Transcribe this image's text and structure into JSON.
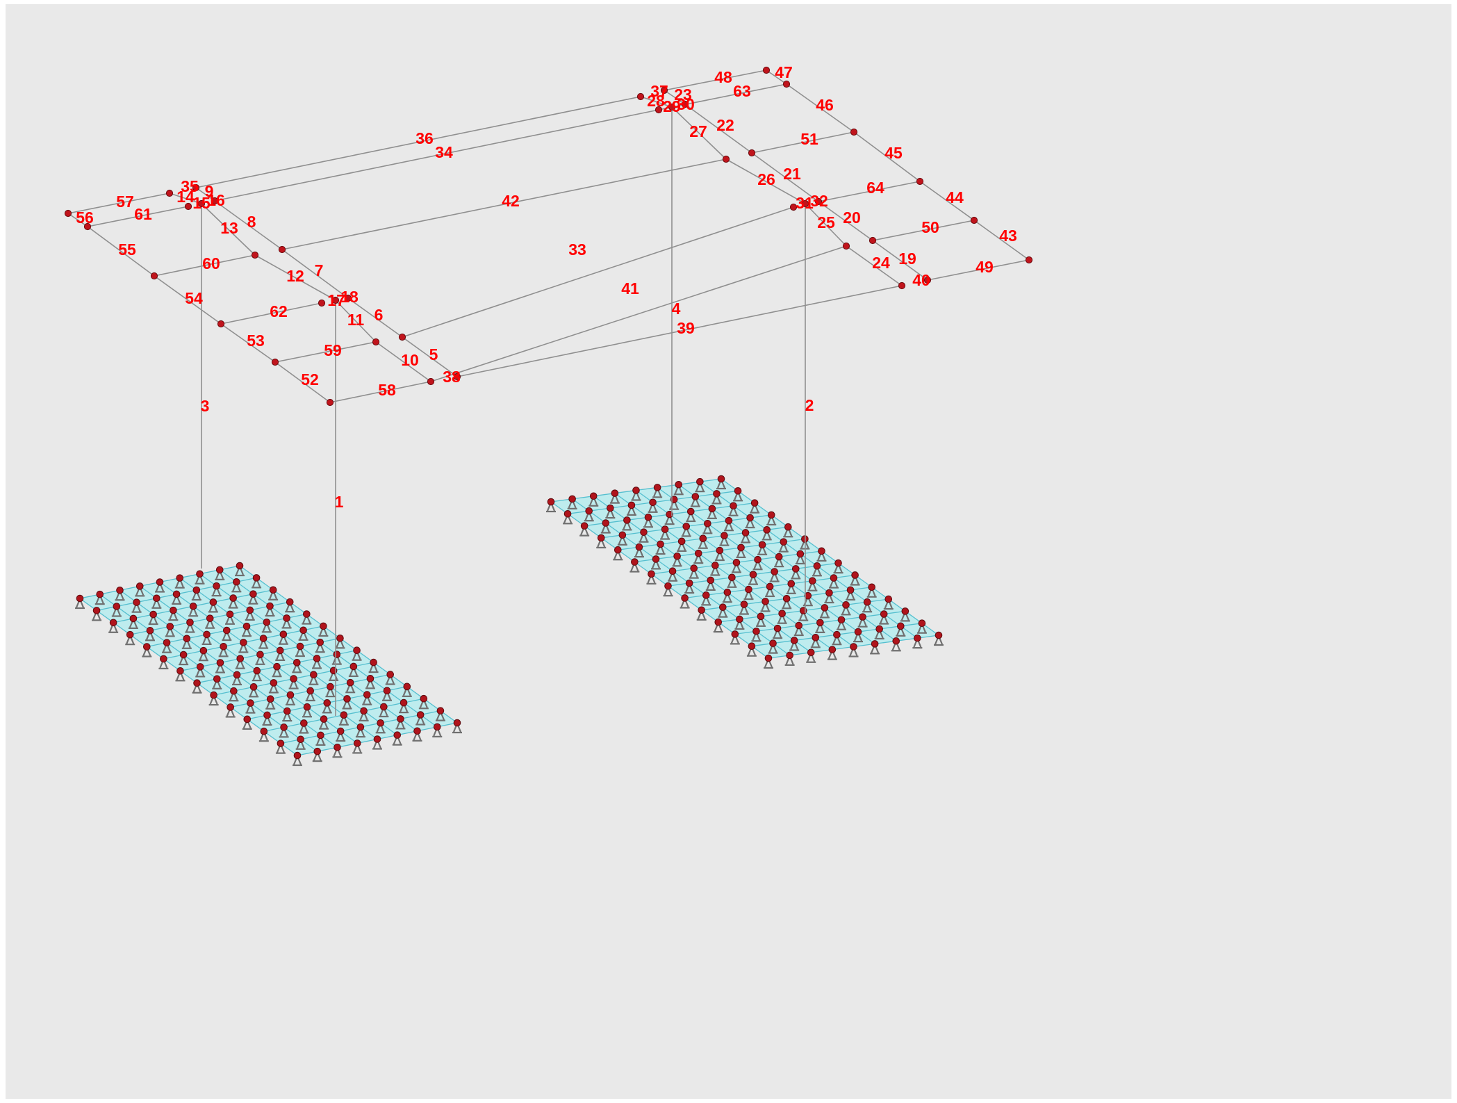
{
  "colors": {
    "background": "#e9e9e9",
    "member_line": "#8f8f8f",
    "node": "#c0141c",
    "label": "#ff0000",
    "mesh_fill": "#b6ecef",
    "mesh_line": "#55bfcf",
    "support": "#6f6f6f"
  },
  "icons": {
    "node": "node-dot-icon",
    "support": "pinned-support-icon"
  },
  "member_labels": {
    "m1": "1",
    "m2": "2",
    "m3": "3",
    "m4": "4",
    "m5": "5",
    "m6": "6",
    "m7": "7",
    "m8": "8",
    "m9": "9",
    "m10": "10",
    "m11": "11",
    "m12": "12",
    "m13": "13",
    "m14": "14",
    "m15": "15",
    "m16": "16",
    "m17": "17",
    "m18": "18",
    "m19": "19",
    "m20": "20",
    "m21": "21",
    "m22": "22",
    "m23": "23",
    "m24": "24",
    "m25": "25",
    "m26": "26",
    "m27": "27",
    "m28": "28",
    "m29": "29",
    "m30": "30",
    "m31": "31",
    "m32": "32",
    "m33": "33",
    "m34": "34",
    "m35": "35",
    "m36": "36",
    "m37": "37",
    "m38": "38",
    "m39": "39",
    "m40": "40",
    "m41": "41",
    "m42": "42",
    "m43": "43",
    "m44": "44",
    "m45": "45",
    "m46": "46",
    "m47": "47",
    "m48": "48",
    "m49": "49",
    "m50": "50",
    "m51": "51",
    "m52": "52",
    "m53": "53",
    "m54": "54",
    "m55": "55",
    "m56": "56",
    "m57": "57",
    "m58": "58",
    "m59": "59",
    "m60": "60",
    "m61": "61",
    "m62": "62",
    "m63": "63",
    "m64": "64"
  }
}
